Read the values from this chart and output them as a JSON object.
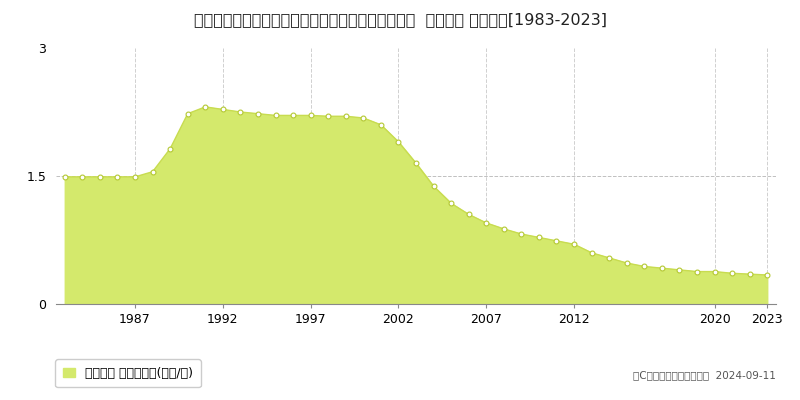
{
  "title": "兵庫県神戸市西区押部谷町細田字前田６４３番１８  地価公示 地価推移[1983-2023]",
  "years": [
    1983,
    1984,
    1985,
    1986,
    1987,
    1988,
    1989,
    1990,
    1991,
    1992,
    1993,
    1994,
    1995,
    1996,
    1997,
    1998,
    1999,
    2000,
    2001,
    2002,
    2003,
    2004,
    2005,
    2006,
    2007,
    2008,
    2009,
    2010,
    2011,
    2012,
    2013,
    2014,
    2015,
    2016,
    2017,
    2018,
    2019,
    2020,
    2021,
    2022,
    2023
  ],
  "values": [
    1.49,
    1.49,
    1.49,
    1.49,
    1.49,
    1.55,
    1.82,
    2.23,
    2.31,
    2.28,
    2.25,
    2.23,
    2.21,
    2.21,
    2.21,
    2.2,
    2.2,
    2.18,
    2.1,
    1.9,
    1.65,
    1.38,
    1.18,
    1.05,
    0.95,
    0.88,
    0.82,
    0.78,
    0.74,
    0.7,
    0.6,
    0.54,
    0.48,
    0.44,
    0.42,
    0.4,
    0.38,
    0.38,
    0.36,
    0.35,
    0.34
  ],
  "fill_color": "#d4e96c",
  "line_color": "#c8dc50",
  "marker_facecolor": "#ffffff",
  "marker_edgecolor": "#b4c832",
  "hline_color": "#c0c0c0",
  "hline_value": 1.5,
  "ylim": [
    0,
    3
  ],
  "yticks": [
    0,
    1.5,
    3
  ],
  "xticks": [
    1987,
    1992,
    1997,
    2002,
    2007,
    2012,
    2020,
    2023
  ],
  "grid_color": "#d0d0d0",
  "background_color": "#ffffff",
  "legend_label": "地価公示 平均坪単価(万円/坪)",
  "copyright_text": "（C）土地価格ドットコム  2024-09-11",
  "title_fontsize": 11.5,
  "axis_fontsize": 9,
  "legend_fontsize": 9,
  "copyright_fontsize": 7.5
}
